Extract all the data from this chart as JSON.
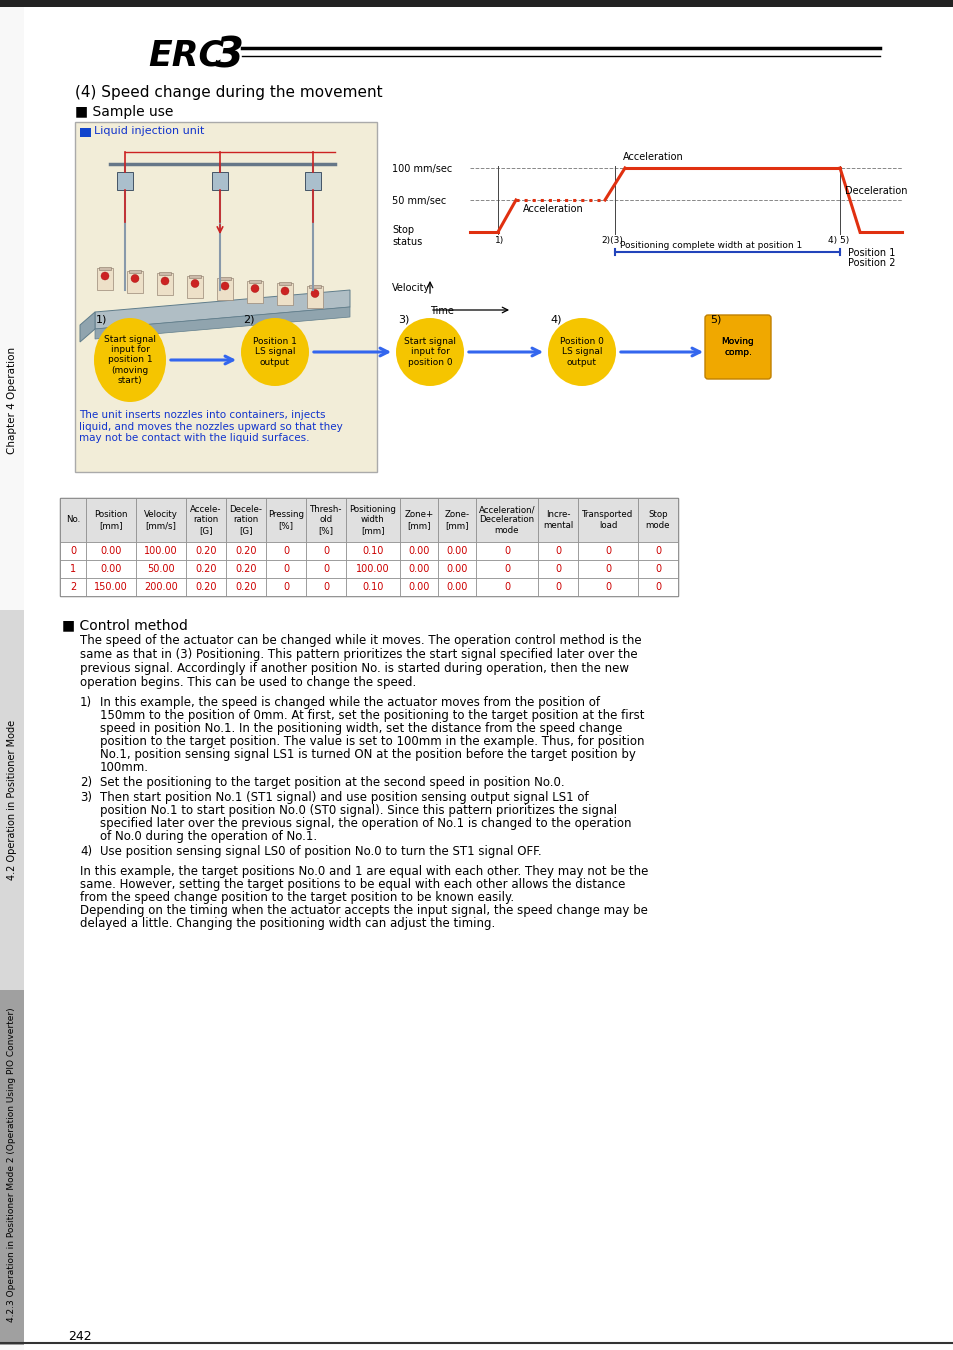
{
  "title_main": "(4) Speed change during the movement",
  "title_sub": "■ Sample use",
  "page_number": "242",
  "liq_label_text": "Liquid injection unit",
  "liq_desc": "The unit inserts nozzles into containers, injects\nliquid, and moves the nozzles upward so that they\nmay not be contact with the liquid surfaces.",
  "vel_100": "100 mm/sec",
  "vel_50": "50 mm/sec",
  "vel_stop": "Stop\nstatus",
  "vel_velocity": "Velocity",
  "vel_time": "Time",
  "annot_accel1": "Acceleration",
  "annot_accel2": "Acceleration",
  "annot_decel": "Deceleration",
  "pos_complete": "Positioning complete width at position 1",
  "pos1_label": "Position 1",
  "pos2_label": "Position 2",
  "step_nums": [
    "1)",
    "2)",
    "3)",
    "4)",
    "5)"
  ],
  "step_texts": [
    "Start signal\ninput for\nposition 1\n(moving\nstart)",
    "Position 1\nLS signal\noutput",
    "Start signal\ninput for\nposition 0",
    "Position 0\nLS signal\noutput",
    "Moving\ncomp."
  ],
  "tbl_headers": [
    "No.",
    "Position\n[mm]",
    "Velocity\n[mm/s]",
    "Accele-\nration\n[G]",
    "Decele-\nration\n[G]",
    "Pressing\n[%]",
    "Thresh-\nold\n[%]",
    "Positioning\nwidth\n[mm]",
    "Zone+\n[mm]",
    "Zone-\n[mm]",
    "Acceleration/\nDeceleration\nmode",
    "Incre-\nmental",
    "Transported\nload",
    "Stop\nmode"
  ],
  "tbl_rows": [
    [
      "0",
      "0.00",
      "100.00",
      "0.20",
      "0.20",
      "0",
      "0",
      "0.10",
      "0.00",
      "0.00",
      "0",
      "0",
      "0",
      "0"
    ],
    [
      "1",
      "0.00",
      "50.00",
      "0.20",
      "0.20",
      "0",
      "0",
      "100.00",
      "0.00",
      "0.00",
      "0",
      "0",
      "0",
      "0"
    ],
    [
      "2",
      "150.00",
      "200.00",
      "0.20",
      "0.20",
      "0",
      "0",
      "0.10",
      "0.00",
      "0.00",
      "0",
      "0",
      "0",
      "0"
    ]
  ],
  "ctrl_title": "■ Control method",
  "ctrl_body": "The speed of the actuator can be changed while it moves. The operation control method is the\nsame as that in (3) Positioning. This pattern prioritizes the start signal specified later over the\nprevious signal. Accordingly if another position No. is started during operation, then the new\noperation begins. This can be used to change the speed.",
  "num_items": [
    "In this example, the speed is changed while the actuator moves from the position of\n150mm to the position of 0mm. At first, set the positioning to the target position at the first\nspeed in position No.1. In the positioning width, set the distance from the speed change\nposition to the target position. The value is set to 100mm in the example. Thus, for position\nNo.1, position sensing signal LS1 is turned ON at the position before the target position by\n100mm.",
    "Set the positioning to the target position at the second speed in position No.0.",
    "Then start position No.1 (ST1 signal) and use position sensing output signal LS1 of\nposition No.1 to start position No.0 (ST0 signal). Since this pattern prioritizes the signal\nspecified later over the previous signal, the operation of No.1 is changed to the operation\nof No.0 during the operation of No.1.",
    "Use position sensing signal LS0 of position No.0 to turn the ST1 signal OFF."
  ],
  "footer": "In this example, the target positions No.0 and 1 are equal with each other. They may not be the\nsame. However, setting the target positions to be equal with each other allows the distance\nfrom the speed change position to the target position to be known easily.\nDepending on the timing when the actuator accepts the input signal, the speed change may be\ndelayed a little. Changing the positioning width can adjust the timing.",
  "sidebar_ch4": "Chapter 4 Operation",
  "sidebar_42": "4.2 Operation in Positioner Mode",
  "sidebar_423": "4.2.3 Operation in Positioner Mode 2 (Operation Using PIO Converter)",
  "vel_color": "#e03010",
  "oval_color": "#f5c500",
  "arrow_color": "#3366ee",
  "blue_text": "#1133cc",
  "red_text": "#cc0000",
  "tbl_hdr_bg": "#e0e0e0",
  "liq_box_bg": "#f2edd8",
  "liq_box_border": "#aaaaaa"
}
